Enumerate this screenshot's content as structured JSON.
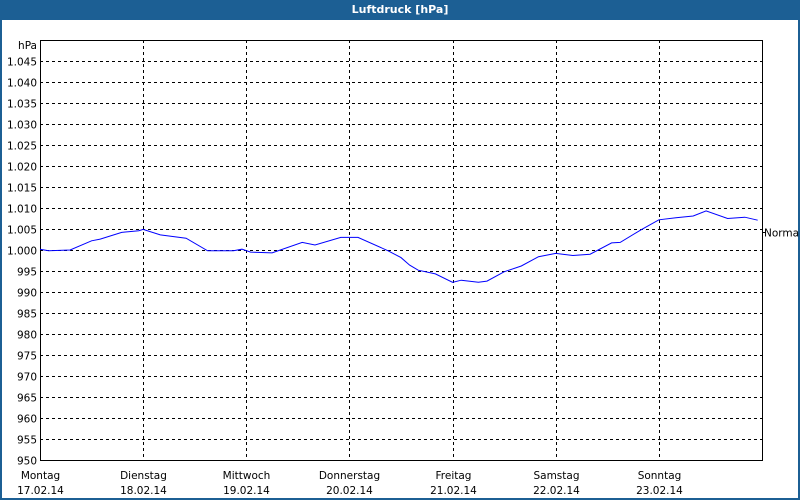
{
  "window": {
    "title": "Luftdruck [hPa]",
    "accent_color": "#1c5f94"
  },
  "chart_data": {
    "type": "line",
    "title": "Luftdruck [hPa]",
    "ylabel": "hPa",
    "ylim": [
      950,
      1050
    ],
    "yticks": [
      {
        "value": 1045,
        "label": "1.045"
      },
      {
        "value": 1040,
        "label": "1.040"
      },
      {
        "value": 1035,
        "label": "1.035"
      },
      {
        "value": 1030,
        "label": "1.030"
      },
      {
        "value": 1025,
        "label": "1.025"
      },
      {
        "value": 1020,
        "label": "1.020"
      },
      {
        "value": 1015,
        "label": "1.015"
      },
      {
        "value": 1010,
        "label": "1.010"
      },
      {
        "value": 1005,
        "label": "1.005"
      },
      {
        "value": 1000,
        "label": "1.000"
      },
      {
        "value": 995,
        "label": "995"
      },
      {
        "value": 990,
        "label": "990"
      },
      {
        "value": 985,
        "label": "985"
      },
      {
        "value": 980,
        "label": "980"
      },
      {
        "value": 975,
        "label": "975"
      },
      {
        "value": 970,
        "label": "970"
      },
      {
        "value": 965,
        "label": "965"
      },
      {
        "value": 960,
        "label": "960"
      },
      {
        "value": 955,
        "label": "955"
      },
      {
        "value": 950,
        "label": "950"
      }
    ],
    "xlim": [
      "17.02.14 00:00",
      "24.02.14 00:00"
    ],
    "xticks": [
      {
        "day": "Montag",
        "date": "17.02.14"
      },
      {
        "day": "Dienstag",
        "date": "18.02.14"
      },
      {
        "day": "Mittwoch",
        "date": "19.02.14"
      },
      {
        "day": "Donnerstag",
        "date": "20.02.14"
      },
      {
        "day": "Freitag",
        "date": "21.02.14"
      },
      {
        "day": "Samstag",
        "date": "22.02.14"
      },
      {
        "day": "Sonntag",
        "date": "23.02.14"
      }
    ],
    "grid": true,
    "reference_line": {
      "label": "Normal",
      "value": 1004.3
    },
    "series": [
      {
        "color": "#0000ff",
        "points": [
          [
            "17.02.14 00:00",
            1000.2
          ],
          [
            "17.02.14 02:00",
            999.8
          ],
          [
            "17.02.14 07:00",
            1000.0
          ],
          [
            "17.02.14 12:00",
            1002.2
          ],
          [
            "17.02.14 14:00",
            1002.6
          ],
          [
            "17.02.14 19:00",
            1004.2
          ],
          [
            "17.02.14 23:00",
            1004.6
          ],
          [
            "18.02.14 00:00",
            1004.9
          ],
          [
            "18.02.14 04:00",
            1003.6
          ],
          [
            "18.02.14 10:00",
            1002.8
          ],
          [
            "18.02.14 15:00",
            999.8
          ],
          [
            "18.02.14 21:00",
            999.8
          ],
          [
            "18.02.14 23:00",
            1000.2
          ],
          [
            "19.02.14 01:00",
            999.5
          ],
          [
            "19.02.14 06:00",
            999.3
          ],
          [
            "19.02.14 13:00",
            1001.8
          ],
          [
            "19.02.14 16:00",
            1001.2
          ],
          [
            "19.02.14 22:00",
            1003.0
          ],
          [
            "20.02.14 02:00",
            1003.0
          ],
          [
            "20.02.14 09:00",
            999.8
          ],
          [
            "20.02.14 12:00",
            998.2
          ],
          [
            "20.02.14 14:00",
            996.4
          ],
          [
            "20.02.14 16:00",
            995.2
          ],
          [
            "20.02.14 20:00",
            994.3
          ],
          [
            "21.02.14 00:00",
            992.3
          ],
          [
            "21.02.14 02:00",
            992.8
          ],
          [
            "21.02.14 06:00",
            992.3
          ],
          [
            "21.02.14 08:00",
            992.6
          ],
          [
            "21.02.14 12:00",
            994.8
          ],
          [
            "21.02.14 16:00",
            996.2
          ],
          [
            "21.02.14 20:00",
            998.4
          ],
          [
            "22.02.14 00:00",
            999.2
          ],
          [
            "22.02.14 04:00",
            998.7
          ],
          [
            "22.02.14 08:00",
            999.0
          ],
          [
            "22.02.14 13:00",
            1001.7
          ],
          [
            "22.02.14 15:00",
            1001.8
          ],
          [
            "22.02.14 20:00",
            1004.9
          ],
          [
            "22.02.14 24:00",
            1007.2
          ],
          [
            "23.02.14 04:00",
            1007.7
          ],
          [
            "23.02.14 08:00",
            1008.1
          ],
          [
            "23.02.14 11:00",
            1009.3
          ],
          [
            "23.02.14 16:00",
            1007.5
          ],
          [
            "23.02.14 20:00",
            1007.8
          ],
          [
            "23.02.14 23:00",
            1007.1
          ]
        ]
      }
    ]
  }
}
